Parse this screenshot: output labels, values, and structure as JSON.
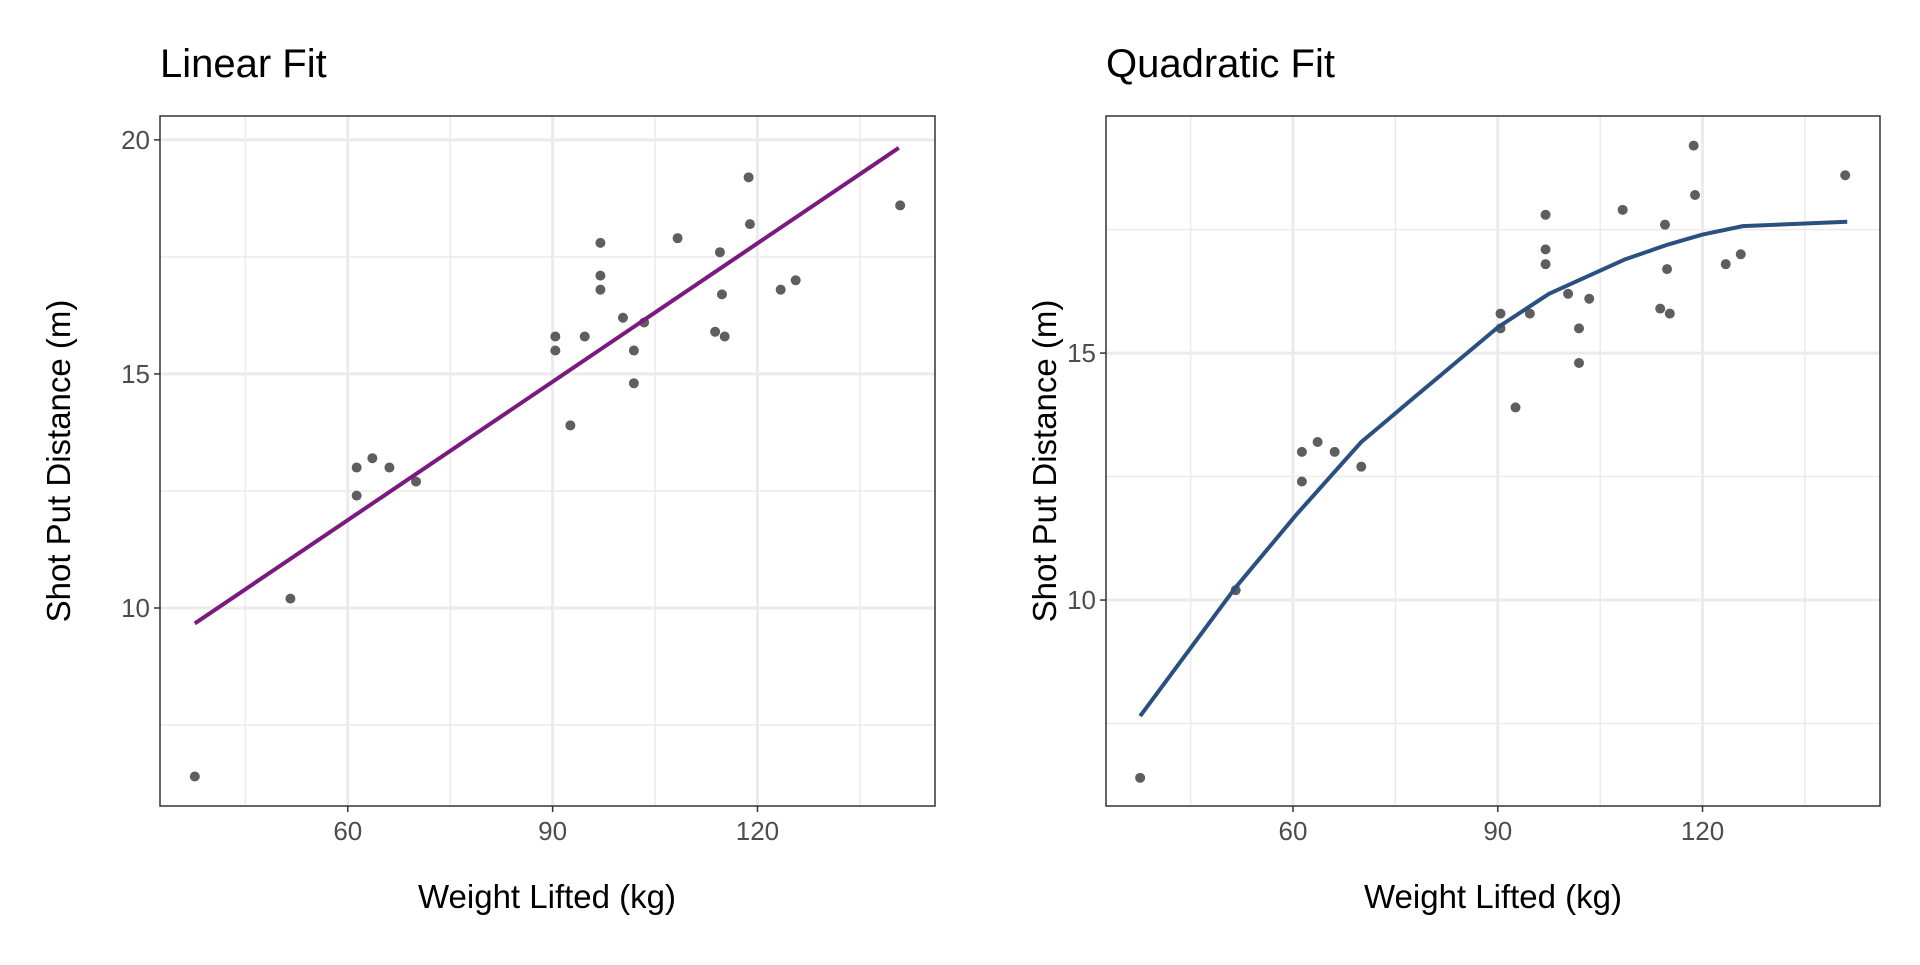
{
  "chart_data": [
    {
      "type": "scatter",
      "title": "Linear Fit",
      "xlabel": "Weight Lifted (kg)",
      "ylabel": "Shot Put Distance (m)",
      "xlim": [
        32.5,
        146
      ],
      "ylim": [
        5.77,
        20.51
      ],
      "xticks": [
        60,
        90,
        120
      ],
      "xminor": [
        45,
        75,
        105,
        135
      ],
      "yticks": [
        10,
        15,
        20
      ],
      "yminor": [
        7.5,
        12.5,
        17.5
      ],
      "grid": true,
      "point_color": "#4d4d4d",
      "fit": {
        "name": "Linear fit",
        "color": "#7a1a80",
        "x": [
          37.6,
          140.7
        ],
        "y": [
          9.67,
          19.83
        ]
      },
      "points": {
        "x": [
          37.6,
          51.6,
          61.3,
          61.3,
          63.6,
          66.1,
          70.0,
          90.4,
          90.4,
          92.6,
          94.7,
          97.0,
          97.0,
          97.0,
          100.3,
          101.9,
          101.9,
          103.4,
          108.3,
          113.8,
          114.5,
          114.8,
          115.2,
          118.7,
          118.9,
          123.4,
          125.6,
          140.9
        ],
        "y": [
          6.4,
          10.2,
          13.0,
          12.4,
          13.2,
          13.0,
          12.7,
          15.8,
          15.5,
          13.9,
          15.8,
          17.8,
          17.1,
          16.8,
          16.2,
          15.5,
          14.8,
          16.1,
          17.9,
          15.9,
          17.6,
          16.7,
          15.8,
          19.2,
          18.2,
          16.8,
          17.0,
          18.6
        ]
      }
    },
    {
      "type": "scatter",
      "title": "Quadratic Fit",
      "xlabel": "Weight Lifted (kg)",
      "ylabel": "Shot Put Distance (m)",
      "xlim": [
        32.6,
        146
      ],
      "ylim": [
        5.83,
        19.8
      ],
      "xticks": [
        60,
        90,
        120
      ],
      "xminor": [
        45,
        75,
        105,
        135
      ],
      "yticks": [
        10,
        15
      ],
      "yminor": [
        7.5,
        12.5,
        17.5
      ],
      "grid": true,
      "point_color": "#4d4d4d",
      "fit": {
        "name": "Quadratic fit",
        "color": "#2a5080",
        "x": [
          37.6,
          51.5,
          60.5,
          70.0,
          78.6,
          90.0,
          97.5,
          108.7,
          115.0,
          120.0,
          125.9,
          141.2
        ],
        "y": [
          7.65,
          10.24,
          11.73,
          13.2,
          14.2,
          15.52,
          16.2,
          16.9,
          17.2,
          17.4,
          17.57,
          17.66
        ]
      },
      "points": {
        "x": [
          37.6,
          51.6,
          61.3,
          61.3,
          63.6,
          66.1,
          70.0,
          90.4,
          90.4,
          92.6,
          94.7,
          97.0,
          97.0,
          97.0,
          100.3,
          101.9,
          101.9,
          103.4,
          108.3,
          113.8,
          114.5,
          114.8,
          115.2,
          118.7,
          118.9,
          123.4,
          125.6,
          140.9
        ],
        "y": [
          6.4,
          10.2,
          13.0,
          12.4,
          13.2,
          13.0,
          12.7,
          15.8,
          15.5,
          13.9,
          15.8,
          17.8,
          17.1,
          16.8,
          16.2,
          15.5,
          14.8,
          16.1,
          17.9,
          15.9,
          17.6,
          16.7,
          15.8,
          19.2,
          18.2,
          16.8,
          17.0,
          18.6
        ]
      }
    }
  ]
}
